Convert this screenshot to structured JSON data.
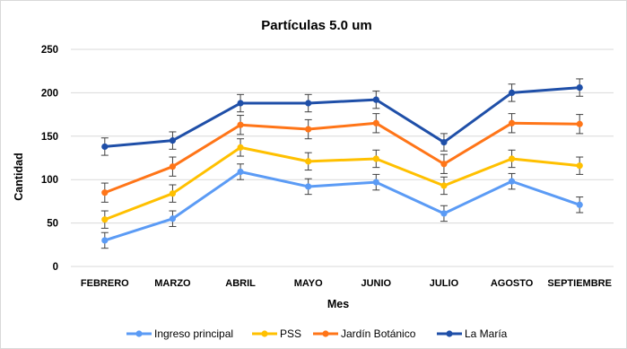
{
  "chart_data": {
    "type": "line",
    "title": "Partículas 5.0 um",
    "xlabel": "Mes",
    "ylabel": "Cantidad",
    "categories": [
      "FEBRERO",
      "MARZO",
      "ABRIL",
      "MAYO",
      "JUNIO",
      "JULIO",
      "AGOSTO",
      "SEPTIEMBRE"
    ],
    "ylim": [
      0,
      250
    ],
    "yticks": [
      0,
      50,
      100,
      150,
      200,
      250
    ],
    "grid": true,
    "legend_position": "bottom",
    "error_bars": true,
    "series": [
      {
        "name": "Ingreso principal",
        "color": "#5b9bf5",
        "values": [
          30,
          55,
          109,
          92,
          97,
          61,
          98,
          71
        ],
        "errors": [
          9,
          9,
          9,
          9,
          9,
          9,
          9,
          9
        ]
      },
      {
        "name": "PSS",
        "color": "#ffc000",
        "values": [
          54,
          84,
          137,
          121,
          124,
          93,
          124,
          116
        ],
        "errors": [
          10,
          10,
          10,
          10,
          10,
          10,
          10,
          10
        ]
      },
      {
        "name": "Jardín Botánico",
        "color": "#ff7518",
        "values": [
          85,
          115,
          163,
          158,
          165,
          118,
          165,
          164
        ],
        "errors": [
          11,
          11,
          11,
          11,
          11,
          11,
          11,
          11
        ]
      },
      {
        "name": "La María",
        "color": "#1f4fa8",
        "values": [
          138,
          145,
          188,
          188,
          192,
          143,
          200,
          206
        ],
        "errors": [
          10,
          10,
          10,
          10,
          10,
          10,
          10,
          10
        ]
      }
    ]
  }
}
